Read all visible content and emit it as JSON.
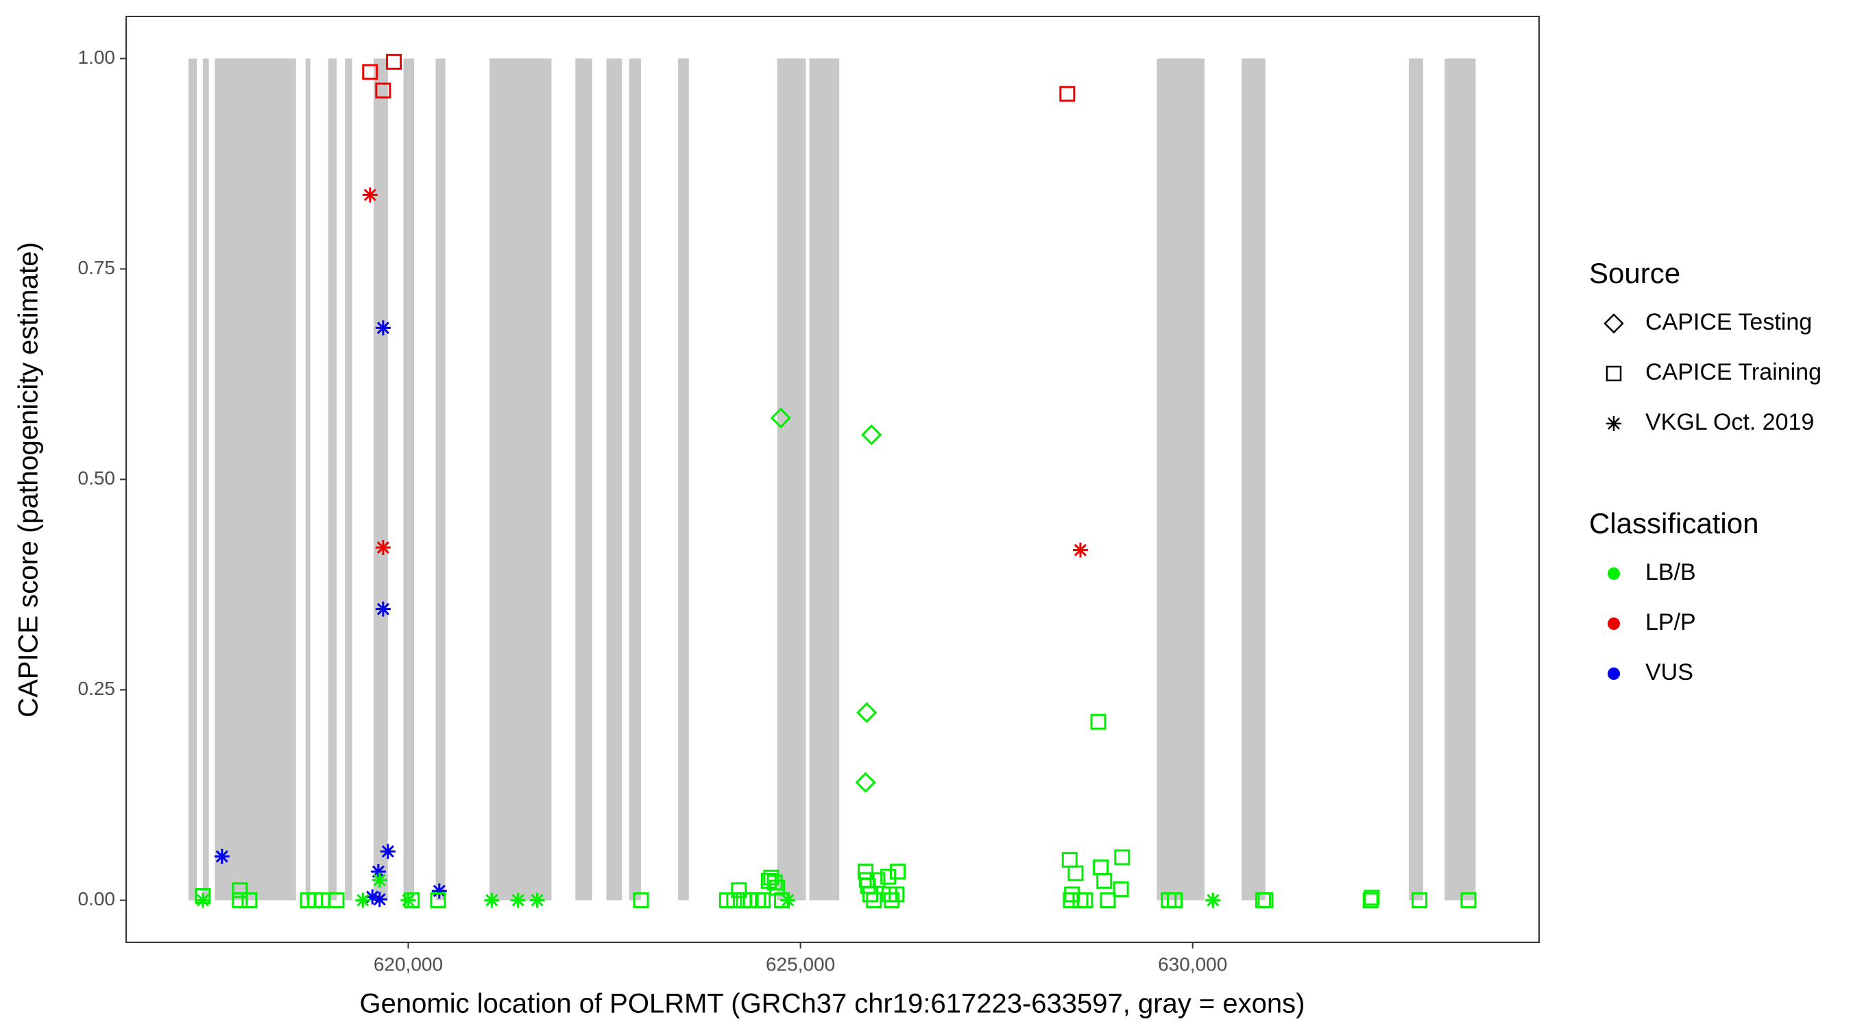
{
  "chart_data": {
    "type": "scatter",
    "x_label": "Genomic location of POLRMT (GRCh37 chr19:617223-633597, gray = exons)",
    "y_label": "CAPICE score (pathogenicity estimate)",
    "xlim": [
      616404,
      634416
    ],
    "ylim": [
      -0.05,
      1.05
    ],
    "xticks": [
      {
        "value": 620000,
        "label": "620,000"
      },
      {
        "value": 625000,
        "label": "625,000"
      },
      {
        "value": 630000,
        "label": "630,000"
      }
    ],
    "yticks": [
      {
        "value": 0,
        "label": "0.00"
      },
      {
        "value": 0.25,
        "label": "0.25"
      },
      {
        "value": 0.5,
        "label": "0.50"
      },
      {
        "value": 0.75,
        "label": "0.75"
      },
      {
        "value": 1,
        "label": "1.00"
      }
    ],
    "grid": false,
    "exon_color": "#c8c8c8",
    "exons": [
      [
        617199,
        617306
      ],
      [
        617382,
        617458
      ],
      [
        617534,
        618569
      ],
      [
        618691,
        618752
      ],
      [
        618980,
        619087
      ],
      [
        619193,
        619285
      ],
      [
        619559,
        619741
      ],
      [
        619939,
        620076
      ],
      [
        620350,
        620472
      ],
      [
        621035,
        621826
      ],
      [
        622131,
        622344
      ],
      [
        622527,
        622725
      ],
      [
        622816,
        622968
      ],
      [
        623440,
        623577
      ],
      [
        624703,
        625068
      ],
      [
        625114,
        625495
      ],
      [
        629543,
        630152
      ],
      [
        630624,
        630928
      ],
      [
        632755,
        632938
      ],
      [
        633212,
        633607
      ]
    ],
    "legend_position": "right",
    "legends": [
      {
        "title": "Source",
        "items": [
          {
            "name": "CAPICE Testing",
            "shape": "diamond"
          },
          {
            "name": "CAPICE Training",
            "shape": "square"
          },
          {
            "name": "VKGL Oct. 2019",
            "shape": "asterisk"
          }
        ]
      },
      {
        "title": "Classification",
        "items": [
          {
            "name": "LB/B",
            "color": "#00ee00"
          },
          {
            "name": "LP/P",
            "color": "#ee0000"
          },
          {
            "name": "VUS",
            "color": "#0000ee"
          }
        ]
      }
    ],
    "series": [
      {
        "source": "CAPICE Training",
        "classification": "LP/P",
        "x": [
          619513,
          619680,
          619817,
          628402
        ],
        "values": [
          0.984,
          0.962,
          0.996,
          0.958
        ]
      },
      {
        "source": "VKGL Oct. 2019",
        "classification": "LP/P",
        "x": [
          619513,
          619680,
          628569
        ],
        "values": [
          0.838,
          0.419,
          0.416
        ]
      },
      {
        "source": "VKGL Oct. 2019",
        "classification": "VUS",
        "x": [
          617626,
          619680,
          619680,
          619741,
          619619,
          619543,
          619635,
          620396
        ],
        "values": [
          0.052,
          0.68,
          0.346,
          0.058,
          0.034,
          0.004,
          0.001,
          0.011
        ]
      },
      {
        "source": "CAPICE Testing",
        "classification": "LB/B",
        "x": [
          624749,
          625906,
          625845,
          625830
        ],
        "values": [
          0.573,
          0.553,
          0.223,
          0.14
        ]
      },
      {
        "source": "VKGL Oct. 2019",
        "classification": "LB/B",
        "x": [
          617382,
          619422,
          620000,
          621065,
          621400,
          621644,
          624840,
          630259,
          619635
        ],
        "values": [
          0,
          0,
          0,
          0,
          0,
          0,
          0,
          0,
          0.024
        ]
      },
      {
        "source": "CAPICE Training",
        "classification": "LB/B",
        "x": [
          617382,
          617854,
          617854,
          617976,
          618721,
          618813,
          618904,
          619087,
          620046,
          620380,
          622968,
          624063,
          624155,
          624216,
          624277,
          624368,
          624459,
          624520,
          624596,
          624627,
          624673,
          624703,
          624764,
          625830,
          625845,
          625860,
          625891,
          625937,
          625982,
          626119,
          626134,
          626164,
          626240,
          626225,
          628432,
          628508,
          628462,
          628447,
          628569,
          628630,
          628828,
          628873,
          628919,
          629086,
          629101,
          628797,
          629695,
          629771,
          630898,
          630928,
          632268,
          632283,
          632892,
          633516
        ],
        "values": [
          0.005,
          0.012,
          0,
          0,
          0,
          0,
          0,
          0,
          0,
          0,
          0,
          0,
          0,
          0.012,
          0,
          0,
          0,
          0,
          0.023,
          0.027,
          0.021,
          0.015,
          0,
          0.034,
          0.024,
          0.017,
          0.007,
          0,
          0.024,
          0.028,
          0.007,
          0,
          0.034,
          0.007,
          0.048,
          0.032,
          0.007,
          0,
          0,
          0,
          0.039,
          0.023,
          0,
          0.013,
          0.051,
          0.212,
          0,
          0,
          0,
          0,
          0,
          0.003,
          0,
          0
        ]
      }
    ]
  }
}
